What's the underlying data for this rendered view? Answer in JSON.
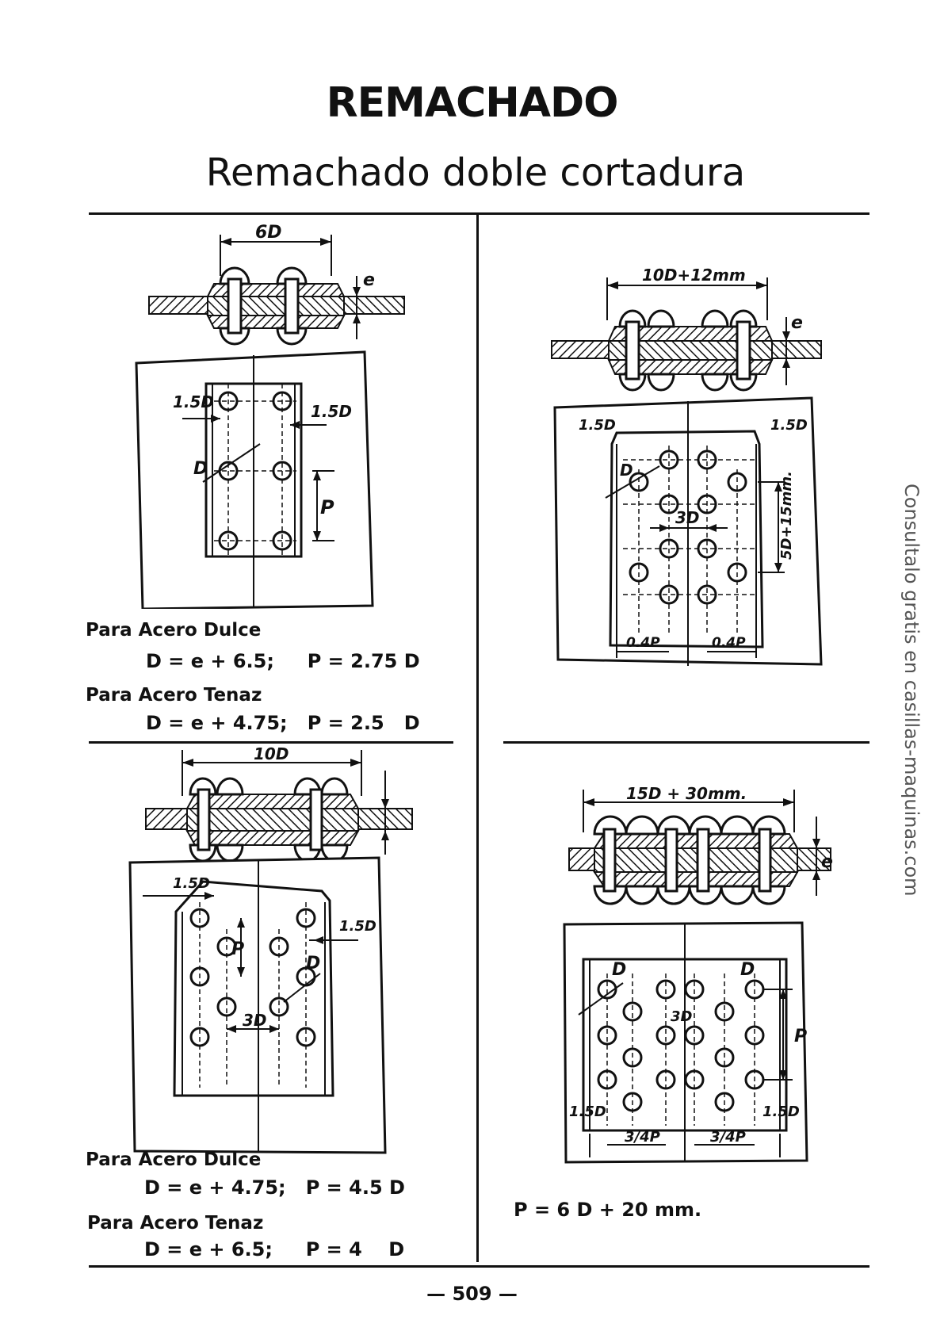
{
  "header": {
    "title": "REMACHADO",
    "subtitle": "Remachado doble cortadura"
  },
  "panel_top_left": {
    "dim_top": "6D",
    "dim_e": "e",
    "dim_edge_left": "1.5D",
    "dim_edge_right": "1.5D",
    "dim_d": "D",
    "dim_p": "P",
    "label_1": "Para Acero Dulce",
    "formula_1": "D = e + 6.5;     P = 2.75 D",
    "label_2": "Para Acero Tenaz",
    "formula_2": "D = e + 4.75;   P = 2.5   D"
  },
  "panel_top_right": {
    "dim_top": "10D+12mm",
    "dim_e": "e",
    "dim_edge_left": "1.5D",
    "dim_edge_right": "1.5D",
    "dim_d": "D",
    "dim_3d": "3D",
    "dim_side": "5D+15mm.",
    "dim_bottom_left": "0.4P",
    "dim_bottom_right": "0.4P"
  },
  "panel_bottom_left": {
    "dim_top": "10D",
    "dim_edge_left": "1.5D",
    "dim_edge_right": "1.5D",
    "dim_p": "P",
    "dim_d": "D",
    "dim_3d": "3D",
    "label_1": "Para Acero Dulce",
    "formula_1": "D = e + 4.75;   P = 4.5 D",
    "label_2": "Para Acero Tenaz",
    "formula_2": "D = e + 6.5;     P = 4    D"
  },
  "panel_bottom_right": {
    "dim_top": "15D + 30mm.",
    "dim_e": "e",
    "dim_d_left": "D",
    "dim_d_right": "D",
    "dim_3d": "3D",
    "dim_p": "P",
    "dim_edge_left": "1.5D",
    "dim_edge_right": "1.5D",
    "dim_bottom_left": "3/4P",
    "dim_bottom_right": "3/4P",
    "formula": "P = 6 D + 20 mm."
  },
  "watermark": "Consultalo gratis en casillas-maquinas.com",
  "footer": {
    "page_number": "— 509 —"
  }
}
